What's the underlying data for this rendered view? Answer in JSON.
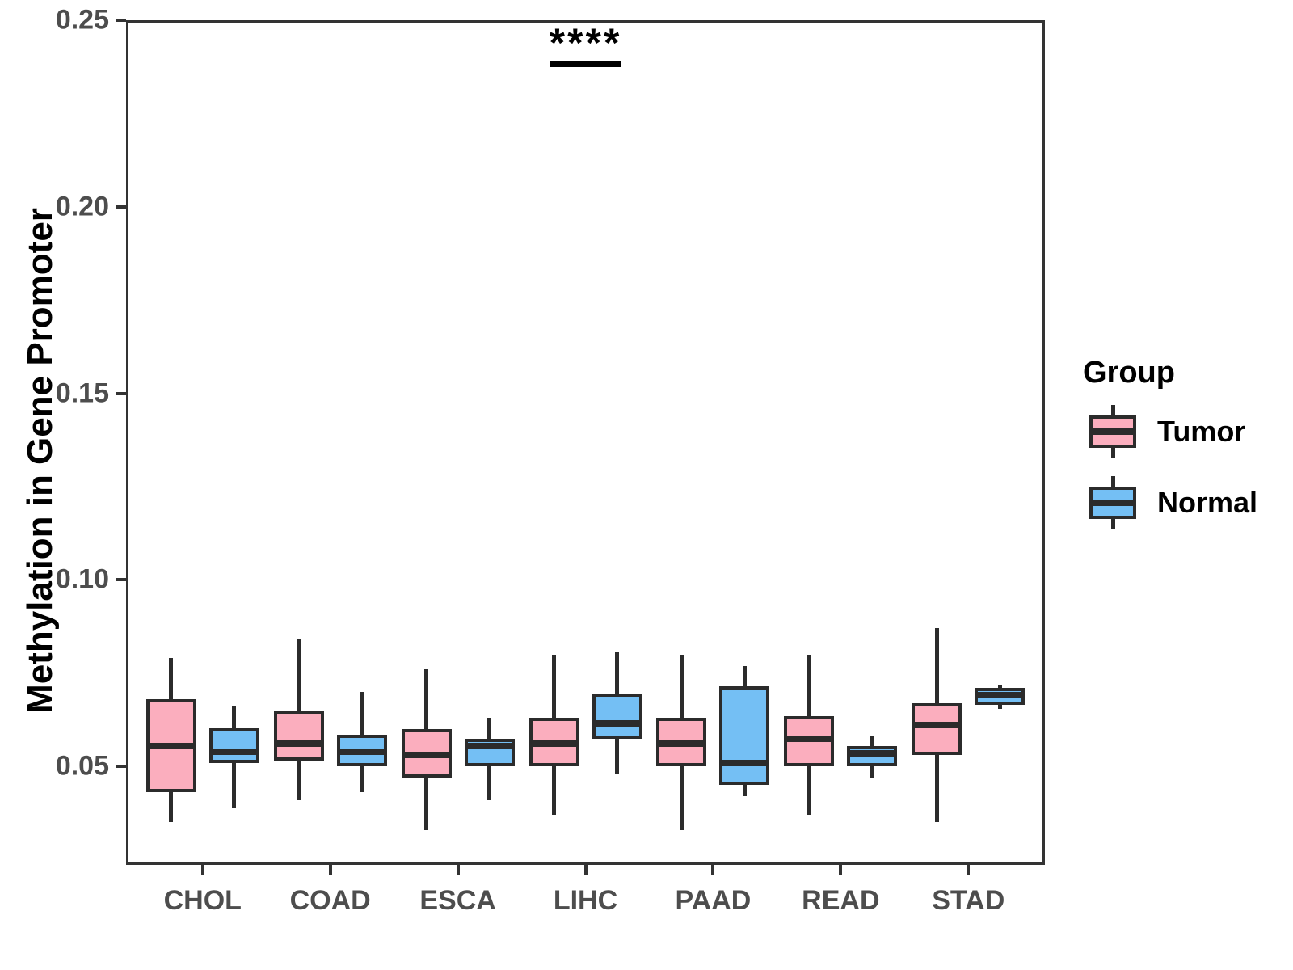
{
  "chart_data": {
    "type": "boxplot",
    "title": "",
    "xlabel": "",
    "ylabel": "Methylation in Gene Promoter",
    "categories": [
      "CHOL",
      "COAD",
      "ESCA",
      "LIHC",
      "PAAD",
      "READ",
      "STAD"
    ],
    "yticks": [
      "0.05",
      "0.10",
      "0.15",
      "0.20",
      "0.25"
    ],
    "ytick_values": [
      0.05,
      0.1,
      0.15,
      0.2,
      0.25
    ],
    "ylim": [
      0.0236,
      0.25
    ],
    "grid": "off",
    "legend": {
      "title": "Group",
      "position": "right",
      "entries": [
        "Tumor",
        "Normal"
      ]
    },
    "colors": {
      "tumor_fill": "#FBAEBE",
      "normal_fill": "#74BFF4",
      "box_stroke": "#2b2b2b",
      "panel_border": "#333333",
      "tick_text": "#4d4d4d"
    },
    "annotation": {
      "label": "****",
      "category": "LIHC",
      "bar_y": 0.239,
      "text_y": 0.244
    },
    "series": [
      {
        "name": "Tumor",
        "fill": "#FBAEBE",
        "boxes": [
          {
            "category": "CHOL",
            "whisker_low": 0.035,
            "q1": 0.043,
            "median": 0.0555,
            "q3": 0.068,
            "whisker_high": 0.079
          },
          {
            "category": "COAD",
            "whisker_low": 0.041,
            "q1": 0.0515,
            "median": 0.056,
            "q3": 0.065,
            "whisker_high": 0.084
          },
          {
            "category": "ESCA",
            "whisker_low": 0.033,
            "q1": 0.047,
            "median": 0.053,
            "q3": 0.06,
            "whisker_high": 0.076
          },
          {
            "category": "LIHC",
            "whisker_low": 0.037,
            "q1": 0.05,
            "median": 0.056,
            "q3": 0.063,
            "whisker_high": 0.08
          },
          {
            "category": "PAAD",
            "whisker_low": 0.033,
            "q1": 0.05,
            "median": 0.056,
            "q3": 0.063,
            "whisker_high": 0.08
          },
          {
            "category": "READ",
            "whisker_low": 0.037,
            "q1": 0.05,
            "median": 0.0575,
            "q3": 0.0635,
            "whisker_high": 0.08
          },
          {
            "category": "STAD",
            "whisker_low": 0.035,
            "q1": 0.053,
            "median": 0.061,
            "q3": 0.067,
            "whisker_high": 0.087
          }
        ]
      },
      {
        "name": "Normal",
        "fill": "#74BFF4",
        "boxes": [
          {
            "category": "CHOL",
            "whisker_low": 0.039,
            "q1": 0.051,
            "median": 0.054,
            "q3": 0.0605,
            "whisker_high": 0.066
          },
          {
            "category": "COAD",
            "whisker_low": 0.043,
            "q1": 0.05,
            "median": 0.054,
            "q3": 0.0585,
            "whisker_high": 0.07
          },
          {
            "category": "ESCA",
            "whisker_low": 0.041,
            "q1": 0.05,
            "median": 0.0555,
            "q3": 0.0575,
            "whisker_high": 0.063
          },
          {
            "category": "LIHC",
            "whisker_low": 0.048,
            "q1": 0.0575,
            "median": 0.0615,
            "q3": 0.0695,
            "whisker_high": 0.0805
          },
          {
            "category": "PAAD",
            "whisker_low": 0.042,
            "q1": 0.045,
            "median": 0.051,
            "q3": 0.0715,
            "whisker_high": 0.077
          },
          {
            "category": "READ",
            "whisker_low": 0.047,
            "q1": 0.05,
            "median": 0.0535,
            "q3": 0.0555,
            "whisker_high": 0.058
          },
          {
            "category": "STAD",
            "whisker_low": 0.0655,
            "q1": 0.0665,
            "median": 0.069,
            "q3": 0.071,
            "whisker_high": 0.072
          }
        ]
      }
    ]
  }
}
